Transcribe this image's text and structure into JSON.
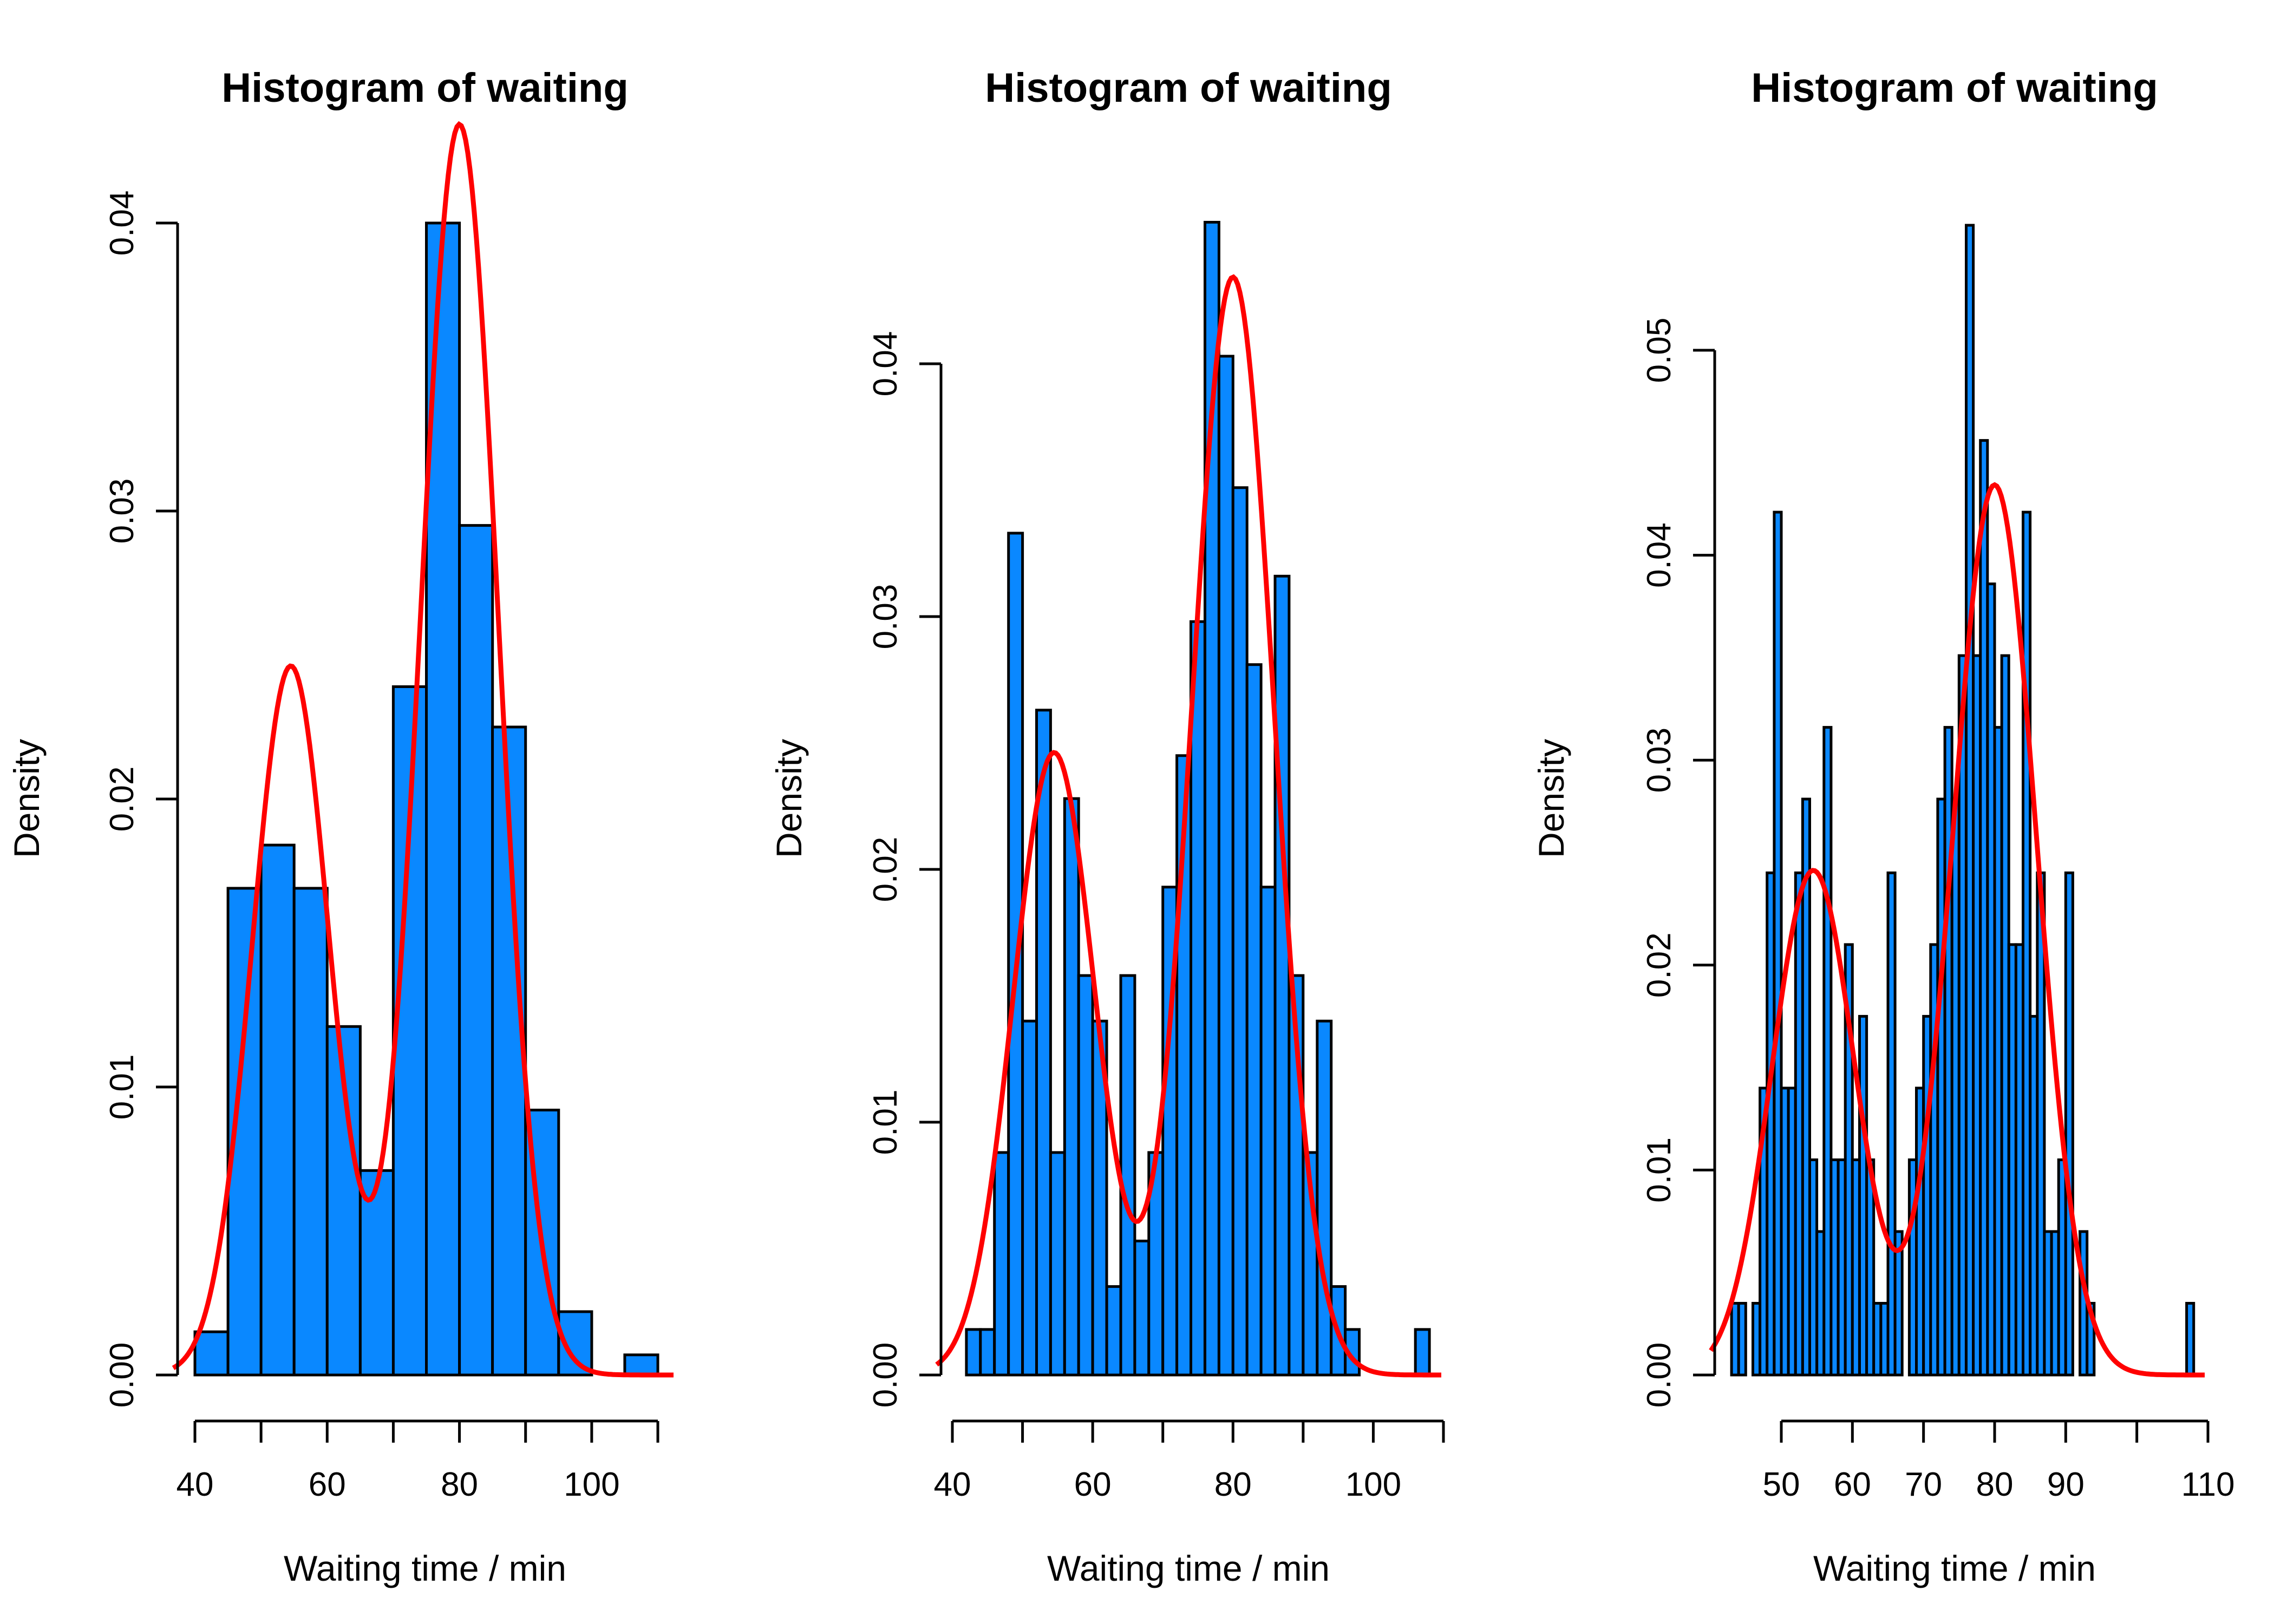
{
  "colors": {
    "bar_fill": "#0A88FF",
    "bar_stroke": "#000000",
    "density_line": "#FF0000",
    "axis": "#000000"
  },
  "chart_data": [
    {
      "type": "bar",
      "title": "Histogram of waiting",
      "xlabel": "Waiting time / min",
      "ylabel": "Density",
      "xlim": [
        35,
        112
      ],
      "ylim": [
        0,
        0.04
      ],
      "x_ticks": [
        40,
        50,
        60,
        70,
        80,
        90,
        100,
        110
      ],
      "x_tick_labels": [
        "40",
        "",
        "60",
        "",
        "80",
        "",
        "100",
        ""
      ],
      "y_ticks": [
        0,
        0.01,
        0.02,
        0.03,
        0.04
      ],
      "y_tick_labels": [
        "0.00",
        "0.01",
        "0.02",
        "0.03",
        "0.04"
      ],
      "bin_width": 5,
      "bins_left": [
        40,
        45,
        50,
        55,
        60,
        65,
        70,
        75,
        80,
        85,
        90,
        95,
        100,
        105
      ],
      "density": [
        0.0015,
        0.0169,
        0.0184,
        0.0169,
        0.0121,
        0.0071,
        0.0239,
        0.04,
        0.0295,
        0.0225,
        0.0092,
        0.0022,
        0.0,
        0.0007
      ]
    },
    {
      "type": "bar",
      "title": "Histogram of waiting",
      "xlabel": "Waiting time / min",
      "ylabel": "Density",
      "xlim": [
        39,
        110
      ],
      "ylim": [
        0,
        0.04
      ],
      "x_ticks": [
        40,
        50,
        60,
        70,
        80,
        90,
        100,
        110
      ],
      "x_tick_labels": [
        "40",
        "",
        "60",
        "",
        "80",
        "",
        "100",
        ""
      ],
      "y_ticks": [
        0,
        0.01,
        0.02,
        0.03,
        0.04
      ],
      "y_tick_labels": [
        "0.00",
        "0.01",
        "0.02",
        "0.03",
        "0.04"
      ],
      "bin_width": 2,
      "bins_left": [
        42,
        44,
        46,
        48,
        50,
        52,
        54,
        56,
        58,
        60,
        62,
        64,
        66,
        68,
        70,
        72,
        74,
        76,
        78,
        80,
        82,
        84,
        86,
        88,
        90,
        92,
        94,
        96,
        98,
        100,
        102,
        104,
        106
      ],
      "density": [
        0.0018,
        0.0018,
        0.0088,
        0.0333,
        0.014,
        0.0263,
        0.0088,
        0.0228,
        0.0158,
        0.014,
        0.0035,
        0.0158,
        0.0053,
        0.0088,
        0.0193,
        0.0245,
        0.0298,
        0.0456,
        0.0403,
        0.0351,
        0.0281,
        0.0193,
        0.0316,
        0.0158,
        0.0088,
        0.014,
        0.0035,
        0.0018,
        0.0,
        0.0,
        0.0,
        0.0,
        0.0018
      ]
    },
    {
      "type": "bar",
      "title": "Histogram of waiting",
      "xlabel": "Waiting time / min",
      "ylabel": "Density",
      "xlim": [
        39.5,
        110.5
      ],
      "ylim": [
        0,
        0.05
      ],
      "x_ticks": [
        50,
        60,
        70,
        80,
        90,
        100,
        110
      ],
      "x_tick_labels": [
        "50",
        "60",
        "70",
        "80",
        "90",
        "",
        "110"
      ],
      "y_ticks": [
        0,
        0.01,
        0.02,
        0.03,
        0.04,
        0.05
      ],
      "y_tick_labels": [
        "0.00",
        "0.01",
        "0.02",
        "0.03",
        "0.04",
        "0.05"
      ],
      "bin_width": 1,
      "bins_left": [
        43,
        44,
        45,
        46,
        47,
        48,
        49,
        50,
        51,
        52,
        53,
        54,
        55,
        56,
        57,
        58,
        59,
        60,
        61,
        62,
        63,
        64,
        65,
        66,
        67,
        68,
        69,
        70,
        71,
        72,
        73,
        74,
        75,
        76,
        77,
        78,
        79,
        80,
        81,
        82,
        83,
        84,
        85,
        86,
        87,
        88,
        89,
        90,
        91,
        92,
        93,
        94,
        95,
        96,
        97,
        98,
        99,
        100,
        101,
        102,
        103,
        104,
        105,
        106,
        107
      ],
      "density": [
        0.0035,
        0.0035,
        0.0,
        0.0035,
        0.014,
        0.0245,
        0.0421,
        0.014,
        0.014,
        0.0245,
        0.0281,
        0.0105,
        0.007,
        0.0316,
        0.0105,
        0.0105,
        0.021,
        0.0105,
        0.0175,
        0.0105,
        0.0035,
        0.0035,
        0.0245,
        0.007,
        0.0,
        0.0105,
        0.014,
        0.0175,
        0.021,
        0.0281,
        0.0316,
        0.0281,
        0.0351,
        0.0561,
        0.0351,
        0.0456,
        0.0386,
        0.0316,
        0.0351,
        0.021,
        0.021,
        0.0421,
        0.0175,
        0.0245,
        0.007,
        0.007,
        0.0105,
        0.0245,
        0.0,
        0.007,
        0.0035,
        0.0,
        0.0,
        0.0,
        0.0,
        0.0,
        0.0,
        0.0,
        0.0,
        0.0,
        0.0,
        0.0,
        0.0,
        0.0,
        0.0035
      ]
    }
  ]
}
